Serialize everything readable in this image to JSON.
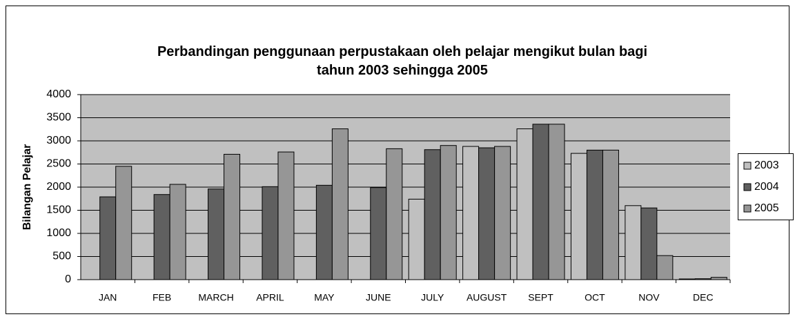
{
  "chart_data": {
    "type": "bar",
    "title": "Perbandingan penggunaan perpustakaan oleh pelajar mengikut bulan bagi tahun 2003 sehingga 2005",
    "y_label": "Bilangan Pelajar",
    "categories": [
      "JAN",
      "FEB",
      "MARCH",
      "APRIL",
      "MAY",
      "JUNE",
      "JULY",
      "AUGUST",
      "SEPT",
      "OCT",
      "NOV",
      "DEC"
    ],
    "series": [
      {
        "name": "2003",
        "color": "#c0c0c0",
        "values": [
          null,
          null,
          null,
          null,
          null,
          null,
          1740,
          2880,
          3260,
          2730,
          1600,
          15
        ]
      },
      {
        "name": "2004",
        "color": "#606060",
        "values": [
          1790,
          1840,
          1960,
          2010,
          2040,
          1990,
          2810,
          2850,
          3360,
          2800,
          1550,
          20
        ]
      },
      {
        "name": "2005",
        "color": "#969696",
        "values": [
          2450,
          2060,
          2710,
          2760,
          3260,
          2830,
          2900,
          2880,
          3360,
          2800,
          520,
          50
        ]
      }
    ],
    "ylim": [
      0,
      4000
    ],
    "yticks": [
      0,
      500,
      1000,
      1500,
      2000,
      2500,
      3000,
      3500,
      4000
    ],
    "grid": true,
    "legend": "right",
    "plot_background": "#c0c0c0"
  }
}
